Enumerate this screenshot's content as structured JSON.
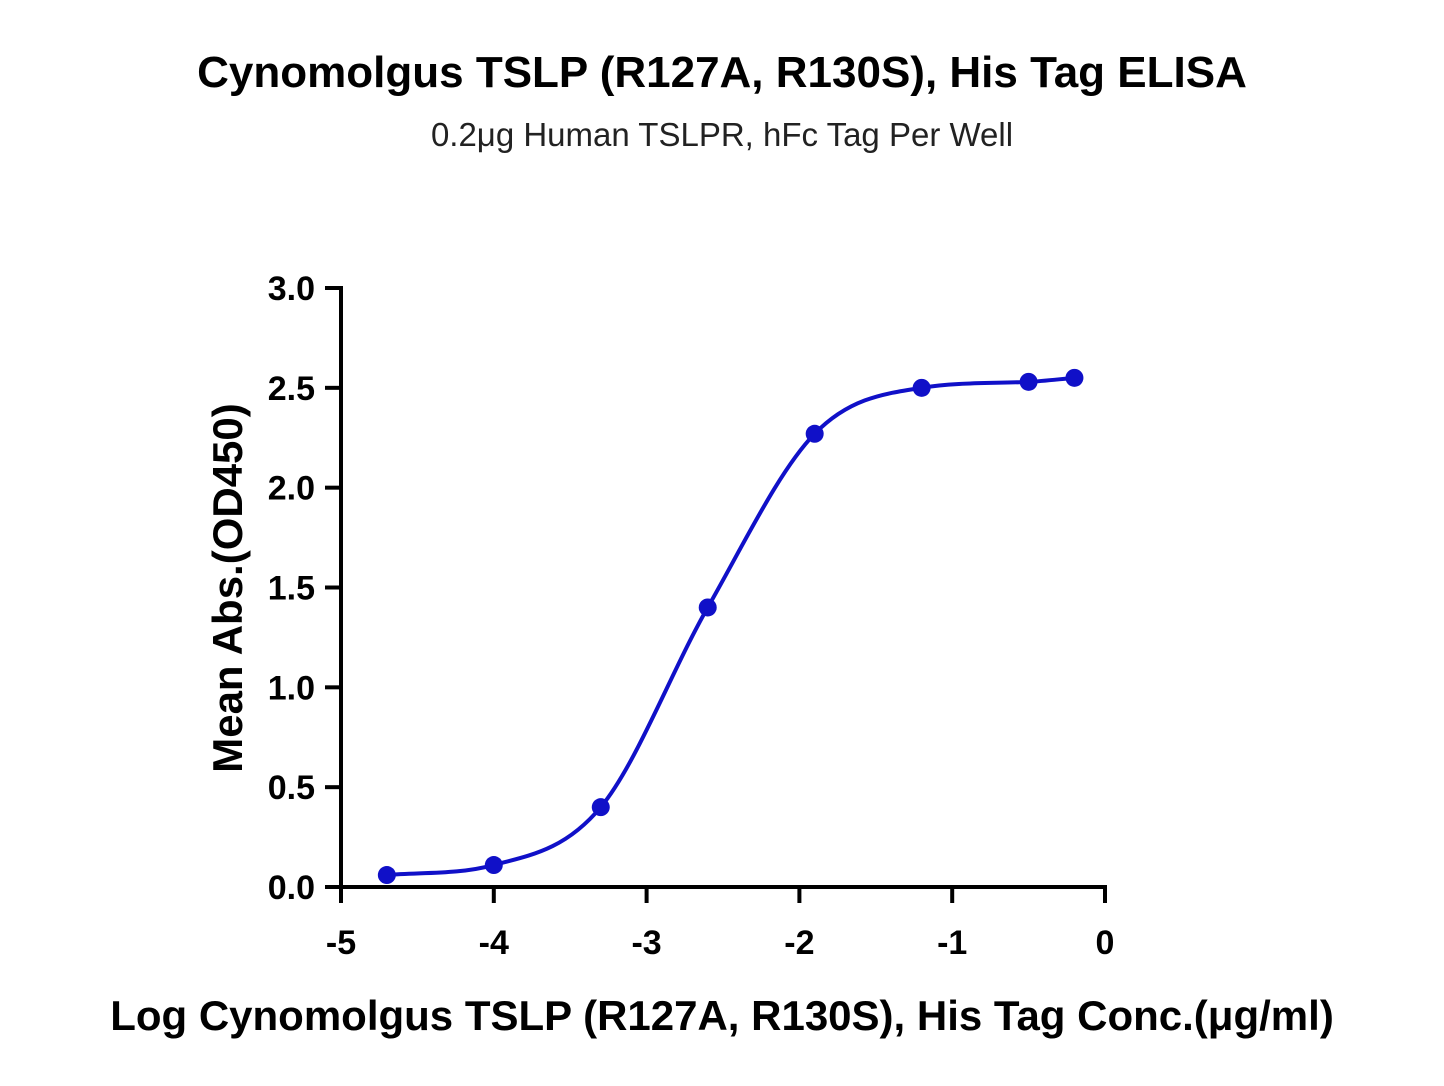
{
  "chart_data": {
    "type": "scatter",
    "title": "Cynomolgus TSLP (R127A, R130S), His Tag ELISA",
    "subtitle": "0.2μg Human TSLPR, hFc Tag Per Well",
    "xlabel": "Log Cynomolgus TSLP (R127A, R130S), His Tag Conc.(μg/ml)",
    "ylabel": "Mean Abs.(OD450)",
    "xlim": [
      -5,
      0
    ],
    "ylim": [
      0,
      3.0
    ],
    "x_ticks": [
      "-5",
      "-4",
      "-3",
      "-2",
      "-1",
      "0"
    ],
    "y_ticks": [
      "0.0",
      "0.5",
      "1.0",
      "1.5",
      "2.0",
      "2.5",
      "3.0"
    ],
    "grid": false,
    "series_color": "#1010c8",
    "series": [
      {
        "x": [
          -4.7,
          -4.0,
          -3.3,
          -2.6,
          -1.9,
          -1.2,
          -0.5,
          -0.2
        ],
        "y": [
          0.06,
          0.11,
          0.4,
          1.4,
          2.27,
          2.5,
          2.53,
          2.55
        ]
      }
    ],
    "fit_curve": true
  }
}
